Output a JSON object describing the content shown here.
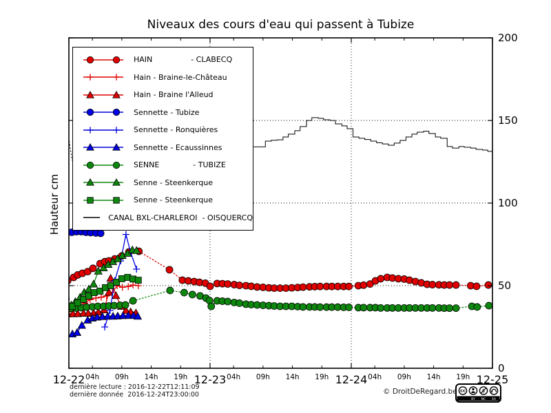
{
  "title": "Niveaux des cours d'eau qui passent à Tubize",
  "footer": {
    "line1": "dernière lecture : 2016-12-22T12:11:09",
    "line2": "dernière donnée  2016-12-24T23:00:00",
    "copyright": "© DroitDeRegard.be"
  },
  "cc_badge": {
    "cc": "cc",
    "by": "BY",
    "nc": "NC",
    "sa": "SA"
  },
  "chart_data": {
    "type": "line",
    "title": "Niveaux des cours d'eau qui passent à Tubize",
    "xlabel": "",
    "ylabel": "Hauteur cm",
    "ylim": [
      0,
      200
    ],
    "yticks": [
      0,
      50,
      100,
      150,
      200
    ],
    "y_axis_side": "right",
    "xlim_hours": [
      0,
      72
    ],
    "x_unit": "hours since 2016-12-22 00:00",
    "x_major_ticks": [
      {
        "h": 0,
        "label": "12-22"
      },
      {
        "h": 24,
        "label": "12-23"
      },
      {
        "h": 48,
        "label": "12-24"
      },
      {
        "h": 72,
        "label": "12-25"
      }
    ],
    "x_minor_ticks": [
      {
        "h": 4,
        "label": "04h"
      },
      {
        "h": 9,
        "label": "09h"
      },
      {
        "h": 14,
        "label": "14h"
      },
      {
        "h": 19,
        "label": "19h"
      },
      {
        "h": 28,
        "label": "04h"
      },
      {
        "h": 33,
        "label": "09h"
      },
      {
        "h": 38,
        "label": "14h"
      },
      {
        "h": 43,
        "label": "19h"
      },
      {
        "h": 52,
        "label": "04h"
      },
      {
        "h": 57,
        "label": "09h"
      },
      {
        "h": 62,
        "label": "14h"
      },
      {
        "h": 67,
        "label": "19h"
      }
    ],
    "grid": {
      "h_values": [
        50,
        100,
        150
      ],
      "v_hours": [
        24,
        48
      ]
    },
    "legend_position": "upper left",
    "series": [
      {
        "name": "hain-clabecq",
        "legend_label": "HAIN                - CLABECQ",
        "color": "#e00000",
        "marker": "circle",
        "line": "solid",
        "dotted_after": 12,
        "points": [
          [
            -0.2,
            53
          ],
          [
            0.8,
            55
          ],
          [
            1.5,
            56.5
          ],
          [
            2.3,
            57.5
          ],
          [
            3.2,
            58.5
          ],
          [
            4.1,
            60.5
          ],
          [
            5.3,
            63.3
          ],
          [
            6.1,
            64.5
          ],
          [
            6.8,
            65
          ],
          [
            7.8,
            66.2
          ],
          [
            9,
            68
          ],
          [
            10.2,
            70.4
          ],
          [
            11.9,
            70.8
          ],
          [
            17.1,
            59.6
          ],
          [
            19.3,
            53.3
          ],
          [
            20.3,
            52.9
          ],
          [
            21.3,
            52.5
          ],
          [
            22.2,
            52
          ],
          [
            23.2,
            51.5
          ],
          [
            24,
            49.6
          ],
          [
            25.2,
            51.3
          ],
          [
            26.1,
            51.2
          ],
          [
            27,
            51
          ],
          [
            28.1,
            50.6
          ],
          [
            29,
            50.2
          ],
          [
            30.1,
            50
          ],
          [
            31,
            49.6
          ],
          [
            32,
            49.2
          ],
          [
            33,
            49
          ],
          [
            34,
            48.7
          ],
          [
            34.9,
            48.5
          ],
          [
            35.9,
            48.5
          ],
          [
            36.9,
            48.5
          ],
          [
            37.9,
            48.7
          ],
          [
            38.9,
            48.9
          ],
          [
            39.8,
            49.1
          ],
          [
            40.9,
            49.3
          ],
          [
            41.8,
            49.4
          ],
          [
            42.7,
            49.5
          ],
          [
            43.8,
            49.5
          ],
          [
            44.7,
            49.5
          ],
          [
            45.7,
            49.5
          ],
          [
            46.7,
            49.5
          ],
          [
            47.6,
            49.5
          ],
          [
            49.2,
            50
          ],
          [
            50.1,
            50.3
          ],
          [
            51.2,
            51
          ],
          [
            52.1,
            52.9
          ],
          [
            53,
            54.2
          ],
          [
            54.1,
            55
          ],
          [
            55,
            54.6
          ],
          [
            56,
            54.2
          ],
          [
            57,
            54
          ],
          [
            57.9,
            53.3
          ],
          [
            58.9,
            52.5
          ],
          [
            59.9,
            51.7
          ],
          [
            60.9,
            50.8
          ],
          [
            61.8,
            50.6
          ],
          [
            62.9,
            50.5
          ],
          [
            63.8,
            50.4
          ],
          [
            64.7,
            50.4
          ],
          [
            65.8,
            50.4
          ],
          [
            68.3,
            50
          ],
          [
            69.3,
            49.6
          ],
          [
            71.3,
            50.4
          ]
        ]
      },
      {
        "name": "hain-braine-le-chateau",
        "legend_label": "Hain - Braine-le-Château",
        "color": "#e00000",
        "marker": "plus",
        "line": "solid",
        "points": [
          [
            -0.2,
            34
          ],
          [
            0.8,
            35.5
          ],
          [
            1.8,
            37.5
          ],
          [
            2.7,
            39.5
          ],
          [
            3.6,
            41.5
          ],
          [
            4.6,
            42.5
          ],
          [
            5.5,
            43
          ],
          [
            6.4,
            43.8
          ],
          [
            7.4,
            46
          ],
          [
            8.2,
            50
          ],
          [
            9.1,
            49
          ],
          [
            10.1,
            49.5
          ],
          [
            10.9,
            50.4
          ],
          [
            11.8,
            50
          ]
        ]
      },
      {
        "name": "hain-braine-l-alleud",
        "legend_label": "Hain - Braine l'Alleud",
        "color": "#e00000",
        "marker": "triangle",
        "line": "solid",
        "points": [
          [
            -0.2,
            33
          ],
          [
            0.7,
            33
          ],
          [
            1.5,
            33.1
          ],
          [
            2.5,
            33.3
          ],
          [
            3.3,
            33.3
          ],
          [
            4.2,
            33.5
          ],
          [
            5,
            34
          ],
          [
            6,
            35.4
          ],
          [
            6.8,
            46
          ],
          [
            7.1,
            54.5
          ],
          [
            8,
            44
          ],
          [
            8.9,
            37.5
          ],
          [
            9.7,
            35
          ],
          [
            10.5,
            34.2
          ],
          [
            11.4,
            33.5
          ]
        ]
      },
      {
        "name": "sennette-tubize",
        "legend_label": "Sennette - Tubize",
        "color": "#0000e0",
        "marker": "circle",
        "line": "solid",
        "points": [
          [
            -0.4,
            81.7
          ],
          [
            0.5,
            82.3
          ],
          [
            1.3,
            82.7
          ],
          [
            2.1,
            82.7
          ],
          [
            2.9,
            82.3
          ],
          [
            3.7,
            82.1
          ],
          [
            4.6,
            81.9
          ],
          [
            5.4,
            81.7
          ]
        ]
      },
      {
        "name": "sennette-ronquieres",
        "legend_label": "Sennette - Ronquières",
        "color": "#0000e0",
        "marker": "plus",
        "line": "solid",
        "points": [
          [
            6.1,
            25
          ],
          [
            7,
            35
          ],
          [
            7.8,
            53
          ],
          [
            8.8,
            65
          ],
          [
            9.7,
            81
          ],
          [
            10.5,
            70
          ],
          [
            11.5,
            60
          ]
        ]
      },
      {
        "name": "sennette-ecaussinnes",
        "legend_label": "Sennette - Ecaussinnes",
        "color": "#0000e0",
        "marker": "triangle",
        "line": "solid",
        "points": [
          [
            0.6,
            20.8
          ],
          [
            1.4,
            21.7
          ],
          [
            2.2,
            26
          ],
          [
            3.2,
            29.2
          ],
          [
            4,
            30.4
          ],
          [
            4.8,
            31
          ],
          [
            5.7,
            31.3
          ],
          [
            6.6,
            31.5
          ],
          [
            7.5,
            31.5
          ],
          [
            8.3,
            31.7
          ],
          [
            9.2,
            31.9
          ],
          [
            10.1,
            32
          ],
          [
            11,
            32
          ],
          [
            11.7,
            31.5
          ]
        ]
      },
      {
        "name": "senne-tubize",
        "legend_label": "SENNE              - TUBIZE",
        "color": "#0e870e",
        "marker": "circle",
        "line": "solid",
        "dotted_after": 11.5,
        "points": [
          [
            -0.5,
            42
          ],
          [
            0.4,
            36.3
          ],
          [
            1.2,
            36.5
          ],
          [
            2.1,
            36.7
          ],
          [
            3,
            37
          ],
          [
            4,
            37.2
          ],
          [
            4.9,
            37.5
          ],
          [
            5.9,
            37.5
          ],
          [
            6.8,
            37.7
          ],
          [
            7.7,
            37.9
          ],
          [
            8.7,
            38.1
          ],
          [
            9.6,
            38.3
          ],
          [
            10.9,
            40.8
          ],
          [
            17.2,
            47.1
          ],
          [
            19.6,
            45.8
          ],
          [
            21,
            44.6
          ],
          [
            22.3,
            43.8
          ],
          [
            23.3,
            42.5
          ],
          [
            23.9,
            41
          ],
          [
            24.2,
            37.5
          ],
          [
            25.2,
            40.8
          ],
          [
            26.1,
            40.6
          ],
          [
            27,
            40.4
          ],
          [
            28.1,
            39.8
          ],
          [
            29,
            39.4
          ],
          [
            30.1,
            38.8
          ],
          [
            31,
            38.5
          ],
          [
            32,
            38.3
          ],
          [
            33,
            38.1
          ],
          [
            34,
            37.9
          ],
          [
            34.9,
            37.7
          ],
          [
            35.9,
            37.5
          ],
          [
            36.9,
            37.5
          ],
          [
            37.9,
            37.5
          ],
          [
            38.9,
            37.3
          ],
          [
            39.8,
            37.1
          ],
          [
            40.9,
            37.1
          ],
          [
            41.8,
            37.1
          ],
          [
            42.7,
            37
          ],
          [
            43.8,
            37
          ],
          [
            44.7,
            37
          ],
          [
            45.7,
            37
          ],
          [
            46.7,
            36.9
          ],
          [
            47.6,
            36.9
          ],
          [
            49.2,
            36.7
          ],
          [
            50.1,
            36.7
          ],
          [
            51.2,
            36.7
          ],
          [
            52.1,
            36.7
          ],
          [
            53,
            36.5
          ],
          [
            54.1,
            36.5
          ],
          [
            55,
            36.5
          ],
          [
            56,
            36.5
          ],
          [
            57,
            36.5
          ],
          [
            57.9,
            36.5
          ],
          [
            58.9,
            36.5
          ],
          [
            59.9,
            36.5
          ],
          [
            60.9,
            36.5
          ],
          [
            61.8,
            36.5
          ],
          [
            62.9,
            36.5
          ],
          [
            63.8,
            36.4
          ],
          [
            64.7,
            36.4
          ],
          [
            65.8,
            36.4
          ],
          [
            68.5,
            37.5
          ],
          [
            69.4,
            37.1
          ],
          [
            71.4,
            37.9
          ]
        ]
      },
      {
        "name": "senne-steenkerque-triangles",
        "legend_label": "Senne - Steenkerque",
        "color": "#0e870e",
        "marker": "triangle",
        "line": "solid",
        "points": [
          [
            -0.3,
            37.5
          ],
          [
            0.4,
            38.3
          ],
          [
            1.1,
            40.4
          ],
          [
            1.9,
            43
          ],
          [
            2.6,
            46
          ],
          [
            3.4,
            48
          ],
          [
            4.2,
            51
          ],
          [
            5,
            58.8
          ],
          [
            5.9,
            60.8
          ],
          [
            6.7,
            62.9
          ],
          [
            7.5,
            64.6
          ],
          [
            8.3,
            66.3
          ],
          [
            9.1,
            68.3
          ],
          [
            10,
            69.6
          ],
          [
            10.8,
            71.7
          ],
          [
            11.5,
            71.3
          ]
        ]
      },
      {
        "name": "senne-steenkerque-squares",
        "legend_label": "Senne - Steenkerque",
        "color": "#0e870e",
        "marker": "square",
        "line": "solid",
        "points": [
          [
            0.6,
            37.5
          ],
          [
            1.5,
            39.6
          ],
          [
            2.5,
            41.7
          ],
          [
            3.4,
            43.8
          ],
          [
            4.3,
            45.8
          ],
          [
            5.3,
            46.7
          ],
          [
            6.2,
            48.8
          ],
          [
            7.1,
            50
          ],
          [
            8.1,
            52.1
          ],
          [
            9,
            54.2
          ],
          [
            10,
            55
          ],
          [
            10.9,
            54
          ],
          [
            11.8,
            53.3
          ]
        ]
      },
      {
        "name": "canal-bxl-charleroi",
        "legend_label": "CANAL BXL-CHARLEROI  - OISQUERCQ",
        "color": "#000000",
        "marker": "none",
        "line": "solid",
        "step": true,
        "points": [
          [
            31.4,
            134
          ],
          [
            32.4,
            134
          ],
          [
            33.4,
            137.5
          ],
          [
            34.4,
            138
          ],
          [
            35.4,
            138.3
          ],
          [
            36.4,
            140
          ],
          [
            37.3,
            141.7
          ],
          [
            38.4,
            143.8
          ],
          [
            39.3,
            146.3
          ],
          [
            40.4,
            150
          ],
          [
            41.3,
            151.7
          ],
          [
            42.4,
            151.3
          ],
          [
            43.3,
            150.4
          ],
          [
            44.4,
            150
          ],
          [
            45.3,
            147.9
          ],
          [
            46.4,
            146.7
          ],
          [
            47.3,
            145
          ],
          [
            48.3,
            140
          ],
          [
            49.3,
            139.2
          ],
          [
            50.3,
            138.5
          ],
          [
            51.3,
            137.5
          ],
          [
            52.3,
            136.5
          ],
          [
            53.3,
            135.8
          ],
          [
            54.3,
            135
          ],
          [
            55.3,
            136.3
          ],
          [
            56.3,
            137.9
          ],
          [
            57.3,
            140
          ],
          [
            58.3,
            141.7
          ],
          [
            59.2,
            142.9
          ],
          [
            60.3,
            143.5
          ],
          [
            61.2,
            142.1
          ],
          [
            62.3,
            140
          ],
          [
            63.2,
            139.2
          ],
          [
            64.3,
            134.2
          ],
          [
            65.2,
            133.3
          ],
          [
            66.3,
            134.2
          ],
          [
            67.2,
            133.8
          ],
          [
            68.3,
            133.3
          ],
          [
            69.2,
            132.5
          ],
          [
            70.3,
            132.1
          ],
          [
            71.2,
            131.3
          ],
          [
            72,
            130.4
          ]
        ]
      },
      {
        "name": "canal-start-stub",
        "legend_label": "",
        "in_legend": false,
        "color": "#000000",
        "marker": "none",
        "line": "dotted",
        "points": [
          [
            -0.3,
            143
          ],
          [
            0,
            139
          ],
          [
            0.2,
            134
          ],
          [
            0.4,
            130
          ],
          [
            0.5,
            126
          ]
        ]
      }
    ]
  }
}
